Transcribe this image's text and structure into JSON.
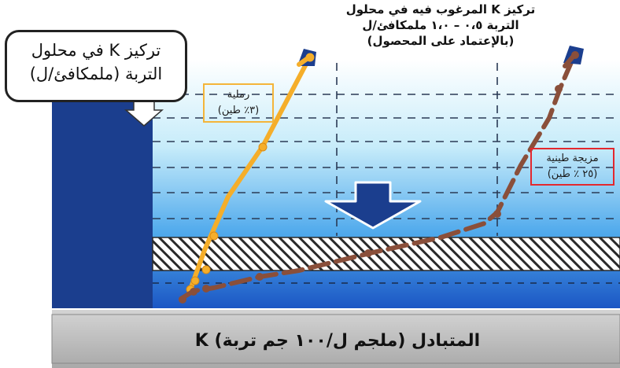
{
  "callout": {
    "line1": "تركيز K في محلول",
    "line2": "التربة (ملمكافئ/ل)"
  },
  "top_note": {
    "line1": "تركيز K المرغوب فيه في محلول",
    "line2": "التربة ٠،٥ – ١،٠ ملمكافئ/ل",
    "line3": "(بالإعتماد على المحصول)"
  },
  "sandy_label": {
    "line1": "رملية",
    "line2": "(٣٪ طين)"
  },
  "loam_label": {
    "line1": "مزيجة طينية",
    "line2": "(٢٥ ٪ طين)"
  },
  "x_axis_label": "K المتبادل (ملجم ل/١٠٠ جم تربة)",
  "colors": {
    "sandy_line": "#f5ae2a",
    "loam_line": "#8a4f3a",
    "dark_blue": "#1b3e8e",
    "sandy_box_border": "#f4b53a",
    "loam_box_border": "#e3282e",
    "axis_band": "#bdbdbd"
  },
  "icons": [
    "down-arrow-icon",
    "up-right-arrow-icon"
  ]
}
